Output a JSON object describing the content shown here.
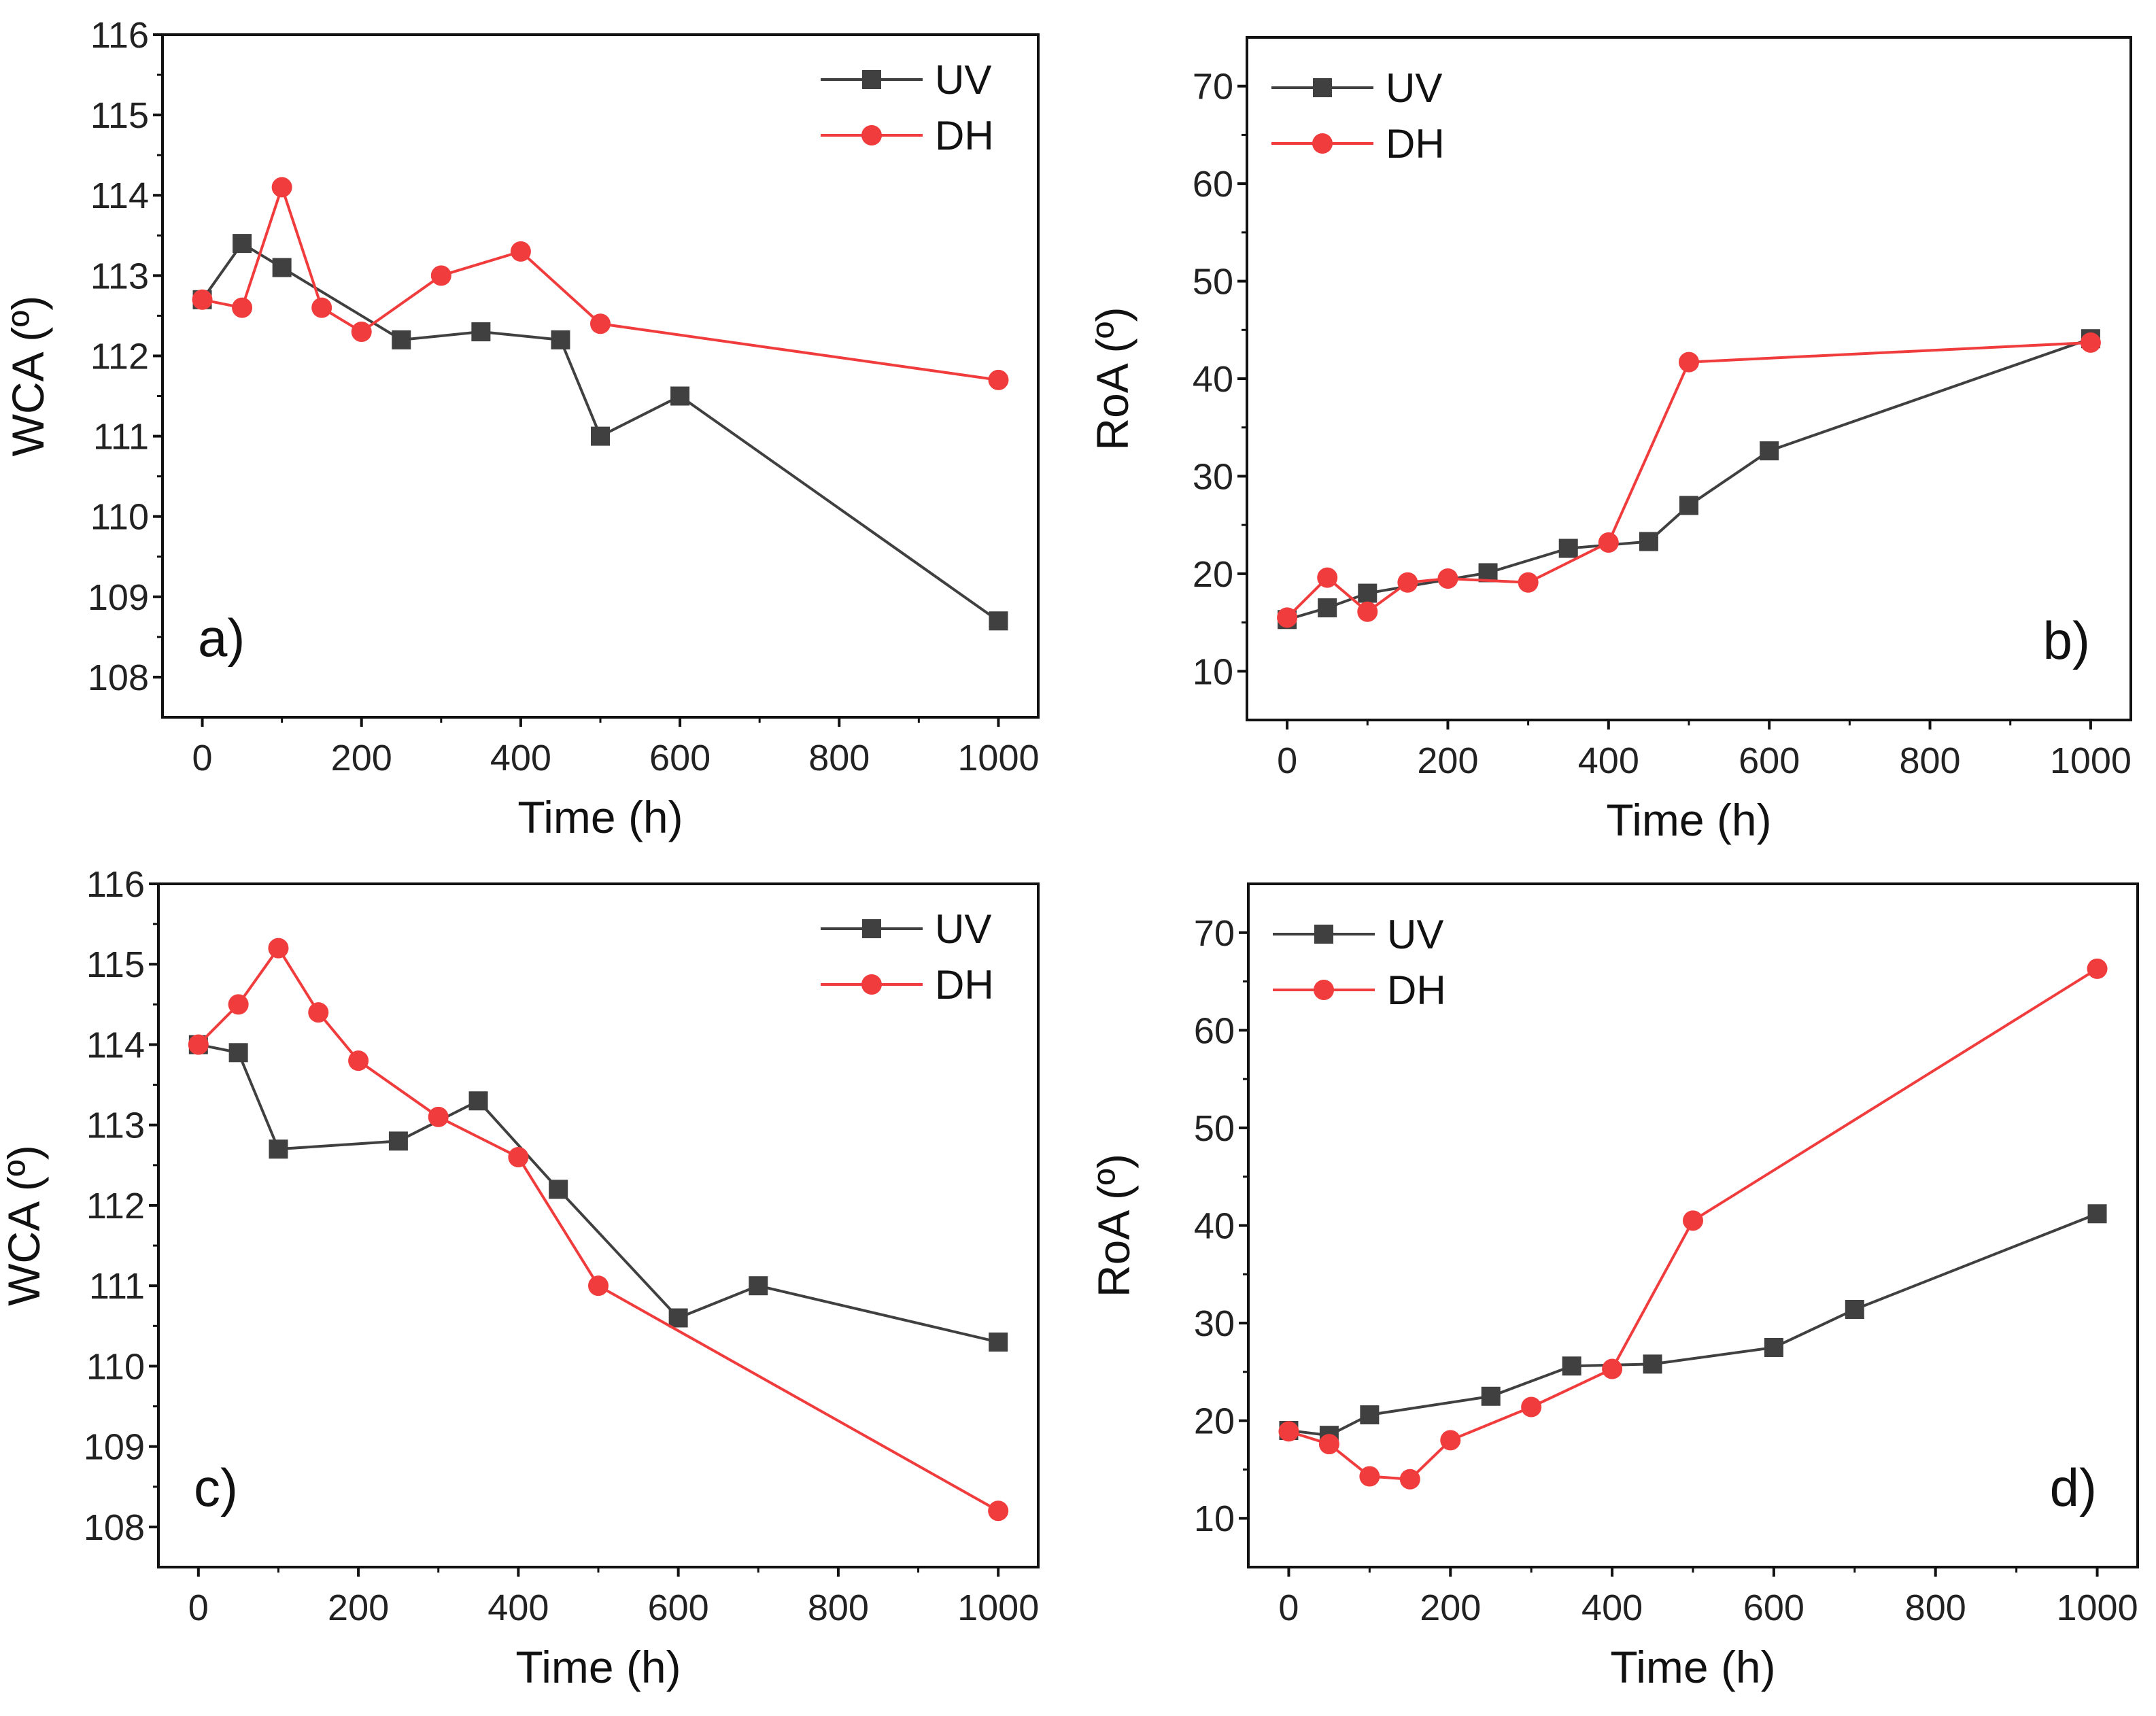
{
  "colors": {
    "UV": "#404040",
    "DH": "#f03c3c"
  },
  "chart_data": [
    {
      "type": "line",
      "panel_label": "a)",
      "xlabel": "Time (h)",
      "ylabel": "WCA (º)",
      "xlim": [
        -50,
        1050
      ],
      "ylim": [
        107.5,
        116
      ],
      "xticks": [
        "0",
        "200",
        "400",
        "600",
        "800",
        "1000"
      ],
      "yticks": [
        "108",
        "109",
        "110",
        "111",
        "112",
        "113",
        "114",
        "115",
        "116"
      ],
      "legend": "top-right",
      "series": [
        {
          "name": "UV",
          "marker": "square",
          "x": [
            0,
            50,
            100,
            250,
            350,
            450,
            500,
            600,
            1000
          ],
          "y": [
            112.7,
            113.4,
            113.1,
            112.2,
            112.3,
            112.2,
            111.0,
            111.5,
            108.7
          ]
        },
        {
          "name": "DH",
          "marker": "circle",
          "x": [
            0,
            50,
            100,
            150,
            200,
            300,
            400,
            500,
            1000
          ],
          "y": [
            112.7,
            112.6,
            114.1,
            112.6,
            112.3,
            113.0,
            113.3,
            112.4,
            111.7
          ]
        }
      ]
    },
    {
      "type": "line",
      "panel_label": "b)",
      "xlabel": "Time (h)",
      "ylabel": "RoA (º)",
      "xlim": [
        -50,
        1050
      ],
      "ylim": [
        5,
        75
      ],
      "xticks": [
        "0",
        "200",
        "400",
        "600",
        "800",
        "1000"
      ],
      "yticks": [
        "10",
        "20",
        "30",
        "40",
        "50",
        "60",
        "70"
      ],
      "legend": "top-left",
      "series": [
        {
          "name": "UV",
          "marker": "square",
          "x": [
            0,
            50,
            100,
            250,
            350,
            450,
            500,
            600,
            1000
          ],
          "y": [
            15.3,
            16.5,
            18.0,
            20.1,
            22.6,
            23.3,
            27.0,
            32.6,
            44.1
          ]
        },
        {
          "name": "DH",
          "marker": "circle",
          "x": [
            0,
            50,
            100,
            150,
            200,
            300,
            400,
            500,
            1000
          ],
          "y": [
            15.5,
            19.6,
            16.1,
            19.1,
            19.5,
            19.1,
            23.2,
            41.7,
            43.7
          ]
        }
      ]
    },
    {
      "type": "line",
      "panel_label": "c)",
      "xlabel": "Time (h)",
      "ylabel": "WCA (º)",
      "xlim": [
        -50,
        1050
      ],
      "ylim": [
        107.5,
        116
      ],
      "xticks": [
        "0",
        "200",
        "400",
        "600",
        "800",
        "1000"
      ],
      "yticks": [
        "108",
        "109",
        "110",
        "111",
        "112",
        "113",
        "114",
        "115",
        "116"
      ],
      "legend": "top-right",
      "series": [
        {
          "name": "UV",
          "marker": "square",
          "x": [
            0,
            50,
            100,
            250,
            350,
            450,
            600,
            700,
            1000
          ],
          "y": [
            114.0,
            113.9,
            112.7,
            112.8,
            113.3,
            112.2,
            110.6,
            111.0,
            110.3
          ]
        },
        {
          "name": "DH",
          "marker": "circle",
          "x": [
            0,
            50,
            100,
            150,
            200,
            300,
            400,
            500,
            1000
          ],
          "y": [
            114.0,
            114.5,
            115.2,
            114.4,
            113.8,
            113.1,
            112.6,
            111.0,
            108.2
          ]
        }
      ]
    },
    {
      "type": "line",
      "panel_label": "d)",
      "xlabel": "Time (h)",
      "ylabel": "RoA (º)",
      "xlim": [
        -50,
        1050
      ],
      "ylim": [
        5,
        75
      ],
      "xticks": [
        "0",
        "200",
        "400",
        "600",
        "800",
        "1000"
      ],
      "yticks": [
        "10",
        "20",
        "30",
        "40",
        "50",
        "60",
        "70"
      ],
      "legend": "top-left",
      "series": [
        {
          "name": "UV",
          "marker": "square",
          "x": [
            0,
            50,
            100,
            250,
            350,
            450,
            600,
            700,
            1000
          ],
          "y": [
            19.0,
            18.5,
            20.6,
            22.5,
            25.6,
            25.8,
            27.5,
            31.4,
            41.2
          ]
        },
        {
          "name": "DH",
          "marker": "circle",
          "x": [
            0,
            50,
            100,
            150,
            200,
            300,
            400,
            500,
            1000
          ],
          "y": [
            18.9,
            17.6,
            14.3,
            14.0,
            18.0,
            21.4,
            25.3,
            40.5,
            66.3
          ]
        }
      ]
    }
  ]
}
